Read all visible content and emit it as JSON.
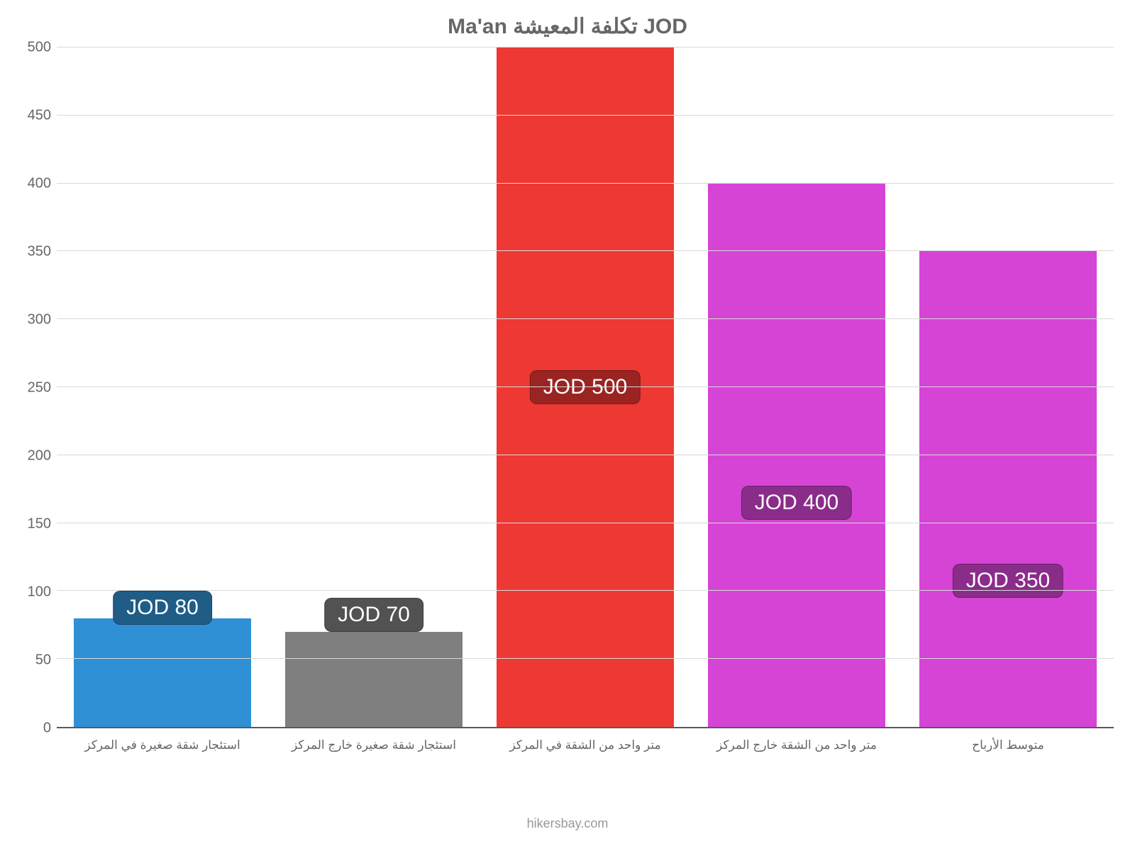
{
  "chart": {
    "type": "bar",
    "title": "Ma'an تكلفة المعيشة JOD",
    "title_color": "#666666",
    "title_fontsize": 30,
    "background_color": "#ffffff",
    "grid_color": "#d9d9d9",
    "axis_label_color": "#666666",
    "axis_fontsize": 20,
    "x_label_fontsize": 17,
    "ylim": [
      0,
      500
    ],
    "ytick_step": 50,
    "yticks": [
      0,
      50,
      100,
      150,
      200,
      250,
      300,
      350,
      400,
      450,
      500
    ],
    "bar_width_pct": 84,
    "categories": [
      "استئجار شقة صغيرة في المركز",
      "استئجار شقة صغيرة خارج المركز",
      "متر واحد من الشقة في المركز",
      "متر واحد من الشقة خارج المركز",
      "متوسط الأرباح"
    ],
    "values": [
      80,
      70,
      500,
      400,
      350
    ],
    "bar_colors": [
      "#2f90d6",
      "#7f7f7f",
      "#ed3833",
      "#d644d6",
      "#d644d6"
    ],
    "value_labels": [
      "JOD 80",
      "JOD 70",
      "JOD 500",
      "JOD 400",
      "JOD 350"
    ],
    "value_label_bg": [
      "#1f5d87",
      "#525252",
      "#9a2421",
      "#8a2c8a",
      "#8a2c8a"
    ],
    "value_label_text_color": "#ffffff",
    "value_label_fontsize": 30,
    "value_label_offsets_pct": [
      -4,
      -5,
      47.5,
      44.5,
      46
    ],
    "footer": "hikersbay.com",
    "footer_color": "#999999",
    "footer_fontsize": 18
  }
}
